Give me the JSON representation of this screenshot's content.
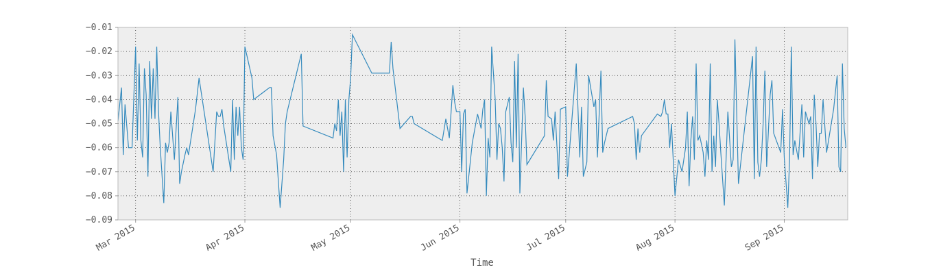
{
  "chart_data": {
    "type": "line",
    "title": "",
    "xlabel": "Time",
    "ylabel": "",
    "xlim": [
      "2015-02-24",
      "2015-09-19"
    ],
    "ylim": [
      -0.09,
      -0.01
    ],
    "grid": true,
    "legend": "none",
    "colors": {
      "line": "#348ABD",
      "plot_bg": "#EEEEEE",
      "grid": "#333333",
      "frame": "#BBBBBB"
    },
    "yticks": [
      "-0.09",
      "-0.08",
      "-0.07",
      "-0.06",
      "-0.05",
      "-0.04",
      "-0.03",
      "-0.02",
      "-0.01"
    ],
    "xticks": [
      {
        "label": "Mar 2015",
        "date": "2015-03-01"
      },
      {
        "label": "Apr 2015",
        "date": "2015-04-01"
      },
      {
        "label": "May 2015",
        "date": "2015-05-01"
      },
      {
        "label": "Jun 2015",
        "date": "2015-06-01"
      },
      {
        "label": "Jul 2015",
        "date": "2015-07-01"
      },
      {
        "label": "Aug 2015",
        "date": "2015-08-01"
      },
      {
        "label": "Sep 2015",
        "date": "2015-09-01"
      }
    ],
    "series": [
      {
        "x": [
          "2015-02-24",
          "2015-02-25",
          "2015-02-25",
          "2015-02-26",
          "2015-02-27",
          "2015-02-27",
          "2015-02-28",
          "2015-03-01",
          "2015-03-01",
          "2015-03-02",
          "2015-03-02",
          "2015-03-03",
          "2015-03-03",
          "2015-03-04",
          "2015-03-04",
          "2015-03-05",
          "2015-03-05",
          "2015-03-06",
          "2015-03-06",
          "2015-03-07",
          "2015-03-07",
          "2015-03-08",
          "2015-03-09",
          "2015-03-09",
          "2015-03-10",
          "2015-03-10",
          "2015-03-11",
          "2015-03-12",
          "2015-03-13",
          "2015-03-13",
          "2015-03-14",
          "2015-03-15",
          "2015-03-15",
          "2015-03-16",
          "2015-03-18",
          "2015-03-19",
          "2015-03-23",
          "2015-03-24",
          "2015-03-24",
          "2015-03-25",
          "2015-03-25",
          "2015-03-26",
          "2015-03-28",
          "2015-03-28",
          "2015-03-29",
          "2015-03-29",
          "2015-03-30",
          "2015-03-30",
          "2015-03-31",
          "2015-03-31",
          "2015-04-01",
          "2015-04-03",
          "2015-04-03",
          "2015-04-08",
          "2015-04-08",
          "2015-04-09",
          "2015-04-10",
          "2015-04-11",
          "2015-04-12",
          "2015-04-12",
          "2015-04-13",
          "2015-04-17",
          "2015-04-17",
          "2015-04-26",
          "2015-04-26",
          "2015-04-27",
          "2015-04-27",
          "2015-04-28",
          "2015-04-28",
          "2015-04-29",
          "2015-04-29",
          "2015-04-30",
          "2015-04-30",
          "2015-05-01",
          "2015-05-01",
          "2015-05-07",
          "2015-05-12",
          "2015-05-12",
          "2015-05-13",
          "2015-05-15",
          "2015-05-18",
          "2015-05-18",
          "2015-05-19",
          "2015-05-27",
          "2015-05-28",
          "2015-05-29",
          "2015-05-30",
          "2015-05-30",
          "2015-05-31",
          "2015-06-01",
          "2015-06-01",
          "2015-06-02",
          "2015-06-02",
          "2015-06-03",
          "2015-06-04",
          "2015-06-04",
          "2015-06-06",
          "2015-06-07",
          "2015-06-07",
          "2015-06-08",
          "2015-06-08",
          "2015-06-09",
          "2015-06-09",
          "2015-06-10",
          "2015-06-11",
          "2015-06-11",
          "2015-06-12",
          "2015-06-12",
          "2015-06-13",
          "2015-06-13",
          "2015-06-14",
          "2015-06-15",
          "2015-06-15",
          "2015-06-16",
          "2015-06-16",
          "2015-06-17",
          "2015-06-17",
          "2015-06-18",
          "2015-06-19",
          "2015-06-19",
          "2015-06-20",
          "2015-06-25",
          "2015-06-25",
          "2015-06-26",
          "2015-06-27",
          "2015-06-27",
          "2015-06-28",
          "2015-06-29",
          "2015-06-29",
          "2015-07-01",
          "2015-07-01",
          "2015-07-04",
          "2015-07-05",
          "2015-07-05",
          "2015-07-06",
          "2015-07-07",
          "2015-07-07",
          "2015-07-09",
          "2015-07-09",
          "2015-07-10",
          "2015-07-11",
          "2015-07-11",
          "2015-07-12",
          "2015-07-13",
          "2015-07-20",
          "2015-07-20",
          "2015-07-21",
          "2015-07-21",
          "2015-07-22",
          "2015-07-22",
          "2015-07-27",
          "2015-07-28",
          "2015-07-28",
          "2015-07-29",
          "2015-07-29",
          "2015-07-30",
          "2015-07-30",
          "2015-07-31",
          "2015-08-01",
          "2015-08-02",
          "2015-08-03",
          "2015-08-04",
          "2015-08-04",
          "2015-08-05",
          "2015-08-05",
          "2015-08-06",
          "2015-08-06",
          "2015-08-07",
          "2015-08-07",
          "2015-08-08",
          "2015-08-09",
          "2015-08-09",
          "2015-08-10",
          "2015-08-10",
          "2015-08-11",
          "2015-08-11",
          "2015-08-12",
          "2015-08-12",
          "2015-08-13",
          "2015-08-13",
          "2015-08-14",
          "2015-08-15",
          "2015-08-16",
          "2015-08-17",
          "2015-08-17",
          "2015-08-18",
          "2015-08-19",
          "2015-08-23",
          "2015-08-23",
          "2015-08-24",
          "2015-08-24",
          "2015-08-25",
          "2015-08-25",
          "2015-08-26",
          "2015-08-26",
          "2015-08-27",
          "2015-08-28",
          "2015-08-28",
          "2015-08-29",
          "2015-08-31",
          "2015-08-31",
          "2015-09-01",
          "2015-09-02",
          "2015-09-02",
          "2015-09-03",
          "2015-09-03",
          "2015-09-04",
          "2015-09-05",
          "2015-09-06",
          "2015-09-06",
          "2015-09-07",
          "2015-09-08",
          "2015-09-08",
          "2015-09-09",
          "2015-09-09",
          "2015-09-10",
          "2015-09-10",
          "2015-09-11",
          "2015-09-11",
          "2015-09-12",
          "2015-09-13",
          "2015-09-15",
          "2015-09-16",
          "2015-09-16",
          "2015-09-17",
          "2015-09-17",
          "2015-09-18",
          "2015-09-18"
        ],
        "y": [
          -0.049,
          -0.035,
          -0.063,
          -0.042,
          -0.06,
          -0.06,
          -0.06,
          -0.018,
          -0.057,
          -0.025,
          -0.057,
          -0.064,
          -0.027,
          -0.038,
          -0.072,
          -0.024,
          -0.048,
          -0.027,
          -0.048,
          -0.018,
          -0.045,
          -0.06,
          -0.083,
          -0.058,
          -0.062,
          -0.058,
          -0.045,
          -0.065,
          -0.039,
          -0.075,
          -0.07,
          -0.063,
          -0.06,
          -0.063,
          -0.044,
          -0.031,
          -0.07,
          -0.045,
          -0.047,
          -0.047,
          -0.044,
          -0.051,
          -0.07,
          -0.04,
          -0.065,
          -0.043,
          -0.055,
          -0.043,
          -0.06,
          -0.065,
          -0.018,
          -0.031,
          -0.04,
          -0.035,
          -0.035,
          -0.055,
          -0.063,
          -0.085,
          -0.065,
          -0.05,
          -0.045,
          -0.021,
          -0.051,
          -0.056,
          -0.05,
          -0.053,
          -0.04,
          -0.055,
          -0.045,
          -0.07,
          -0.04,
          -0.064,
          -0.04,
          -0.031,
          -0.013,
          -0.029,
          -0.029,
          -0.016,
          -0.027,
          -0.052,
          -0.047,
          -0.047,
          -0.05,
          -0.057,
          -0.048,
          -0.056,
          -0.034,
          -0.041,
          -0.045,
          -0.045,
          -0.07,
          -0.046,
          -0.044,
          -0.079,
          -0.065,
          -0.058,
          -0.046,
          -0.052,
          -0.044,
          -0.04,
          -0.08,
          -0.056,
          -0.064,
          -0.018,
          -0.04,
          -0.065,
          -0.05,
          -0.052,
          -0.06,
          -0.074,
          -0.045,
          -0.039,
          -0.058,
          -0.066,
          -0.024,
          -0.06,
          -0.021,
          -0.079,
          -0.035,
          -0.047,
          -0.067,
          -0.055,
          -0.032,
          -0.047,
          -0.048,
          -0.057,
          -0.045,
          -0.073,
          -0.044,
          -0.043,
          -0.072,
          -0.025,
          -0.064,
          -0.043,
          -0.072,
          -0.066,
          -0.03,
          -0.043,
          -0.04,
          -0.064,
          -0.028,
          -0.062,
          -0.058,
          -0.052,
          -0.047,
          -0.05,
          -0.065,
          -0.052,
          -0.062,
          -0.055,
          -0.046,
          -0.047,
          -0.045,
          -0.04,
          -0.046,
          -0.046,
          -0.06,
          -0.05,
          -0.08,
          -0.065,
          -0.07,
          -0.06,
          -0.045,
          -0.076,
          -0.057,
          -0.047,
          -0.065,
          -0.025,
          -0.057,
          -0.055,
          -0.062,
          -0.072,
          -0.057,
          -0.065,
          -0.025,
          -0.07,
          -0.055,
          -0.068,
          -0.04,
          -0.05,
          -0.062,
          -0.084,
          -0.045,
          -0.068,
          -0.065,
          -0.015,
          -0.075,
          -0.022,
          -0.073,
          -0.018,
          -0.066,
          -0.072,
          -0.065,
          -0.05,
          -0.028,
          -0.068,
          -0.038,
          -0.032,
          -0.054,
          -0.062,
          -0.044,
          -0.064,
          -0.085,
          -0.065,
          -0.018,
          -0.063,
          -0.057,
          -0.065,
          -0.042,
          -0.064,
          -0.045,
          -0.05,
          -0.047,
          -0.073,
          -0.038,
          -0.05,
          -0.068,
          -0.054,
          -0.054,
          -0.04,
          -0.062,
          -0.044,
          -0.03,
          -0.068,
          -0.07,
          -0.025,
          -0.052,
          -0.06
        ]
      }
    ]
  }
}
